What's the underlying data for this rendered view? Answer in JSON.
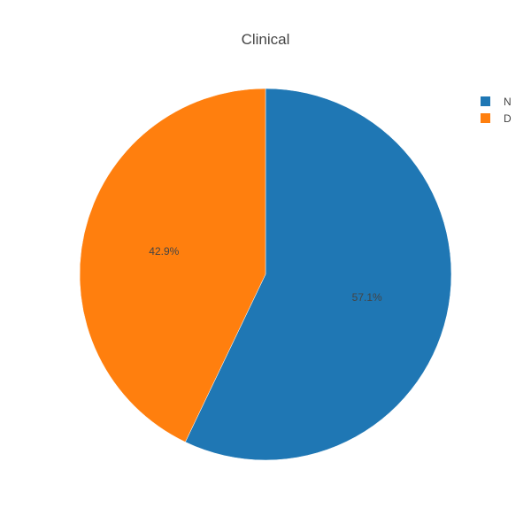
{
  "chart_data": {
    "type": "pie",
    "title": "Clinical",
    "labels": [
      "N",
      "D"
    ],
    "values": [
      57.1,
      42.9
    ],
    "value_labels": [
      "57.1%",
      "42.9%"
    ],
    "colors": [
      "#1f77b4",
      "#ff7f0e"
    ],
    "start_angle": "12 o'clock",
    "direction": "clockwise",
    "legend_position": "top-right"
  }
}
